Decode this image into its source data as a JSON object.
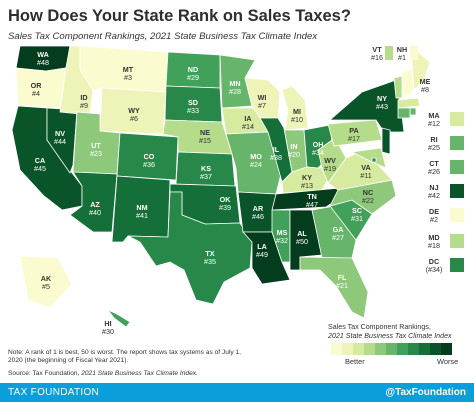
{
  "title": "How Does Your State Rank on Sales Taxes?",
  "subtitle": "Sales Tax Component Rankings, 2021 State Business Tax Climate Index",
  "legend": {
    "title_line1": "Sales Tax Component Rankings,",
    "title_line2": "2021 State Business Tax Climate Index",
    "better": "Better",
    "worse": "Worse",
    "colors": [
      "#fbfbd0",
      "#eef3b8",
      "#d6eb9f",
      "#b4dc8a",
      "#8dc87b",
      "#66b56a",
      "#41a05a",
      "#278849",
      "#146f39",
      "#0a5429",
      "#033d1d"
    ]
  },
  "note": "Note: A rank of 1 is best, 50 is worst.  The report shows tax systems as of July 1, 2020 (the beginning of Fiscal Year 2021).",
  "source": {
    "prefix": "Source: Tax Foundation, ",
    "italic": "2021 State Business Tax Climate Index."
  },
  "footer": {
    "left": "TAX FOUNDATION",
    "right": "@TaxFoundation"
  },
  "states": [
    {
      "abbr": "WA",
      "rank": 48,
      "label": "#48"
    },
    {
      "abbr": "OR",
      "rank": 4,
      "label": "#4"
    },
    {
      "abbr": "CA",
      "rank": 45,
      "label": "#45"
    },
    {
      "abbr": "NV",
      "rank": 44,
      "label": "#44"
    },
    {
      "abbr": "ID",
      "rank": 9,
      "label": "#9"
    },
    {
      "abbr": "MT",
      "rank": 3,
      "label": "#3"
    },
    {
      "abbr": "WY",
      "rank": 6,
      "label": "#6"
    },
    {
      "abbr": "UT",
      "rank": 23,
      "label": "#23"
    },
    {
      "abbr": "AZ",
      "rank": 40,
      "label": "#40"
    },
    {
      "abbr": "CO",
      "rank": 36,
      "label": "#36"
    },
    {
      "abbr": "NM",
      "rank": 41,
      "label": "#41"
    },
    {
      "abbr": "ND",
      "rank": 29,
      "label": "#29"
    },
    {
      "abbr": "SD",
      "rank": 33,
      "label": "#33"
    },
    {
      "abbr": "NE",
      "rank": 15,
      "label": "#15"
    },
    {
      "abbr": "KS",
      "rank": 37,
      "label": "#37"
    },
    {
      "abbr": "OK",
      "rank": 39,
      "label": "#39"
    },
    {
      "abbr": "TX",
      "rank": 35,
      "label": "#35"
    },
    {
      "abbr": "MN",
      "rank": 28,
      "label": "#28"
    },
    {
      "abbr": "IA",
      "rank": 14,
      "label": "#14"
    },
    {
      "abbr": "MO",
      "rank": 24,
      "label": "#24"
    },
    {
      "abbr": "AR",
      "rank": 46,
      "label": "#46"
    },
    {
      "abbr": "LA",
      "rank": 49,
      "label": "#49"
    },
    {
      "abbr": "WI",
      "rank": 7,
      "label": "#7"
    },
    {
      "abbr": "IL",
      "rank": 38,
      "label": "#38"
    },
    {
      "abbr": "MI",
      "rank": 10,
      "label": "#10"
    },
    {
      "abbr": "IN",
      "rank": 20,
      "label": "#20"
    },
    {
      "abbr": "OH",
      "rank": 34,
      "label": "#34"
    },
    {
      "abbr": "KY",
      "rank": 13,
      "label": "#13"
    },
    {
      "abbr": "TN",
      "rank": 47,
      "label": "#47"
    },
    {
      "abbr": "MS",
      "rank": 32,
      "label": "#32"
    },
    {
      "abbr": "AL",
      "rank": 50,
      "label": "#50"
    },
    {
      "abbr": "GA",
      "rank": 27,
      "label": "#27"
    },
    {
      "abbr": "FL",
      "rank": 21,
      "label": "#21"
    },
    {
      "abbr": "SC",
      "rank": 31,
      "label": "#31"
    },
    {
      "abbr": "NC",
      "rank": 22,
      "label": "#22"
    },
    {
      "abbr": "VA",
      "rank": 11,
      "label": "#11"
    },
    {
      "abbr": "WV",
      "rank": 19,
      "label": "#19"
    },
    {
      "abbr": "PA",
      "rank": 17,
      "label": "#17"
    },
    {
      "abbr": "NY",
      "rank": 43,
      "label": "#43"
    },
    {
      "abbr": "ME",
      "rank": 8,
      "label": "#8"
    },
    {
      "abbr": "VT",
      "rank": 16,
      "label": "#16"
    },
    {
      "abbr": "NH",
      "rank": 1,
      "label": "#1"
    },
    {
      "abbr": "MA",
      "rank": 12,
      "label": "#12"
    },
    {
      "abbr": "RI",
      "rank": 25,
      "label": "#25"
    },
    {
      "abbr": "CT",
      "rank": 26,
      "label": "#26"
    },
    {
      "abbr": "NJ",
      "rank": 42,
      "label": "#42"
    },
    {
      "abbr": "DE",
      "rank": 2,
      "label": "#2"
    },
    {
      "abbr": "MD",
      "rank": 18,
      "label": "#18"
    },
    {
      "abbr": "DC",
      "rank": 34,
      "label": "(#34)"
    },
    {
      "abbr": "AK",
      "rank": 5,
      "label": "#5"
    },
    {
      "abbr": "HI",
      "rank": 30,
      "label": "#30"
    }
  ]
}
